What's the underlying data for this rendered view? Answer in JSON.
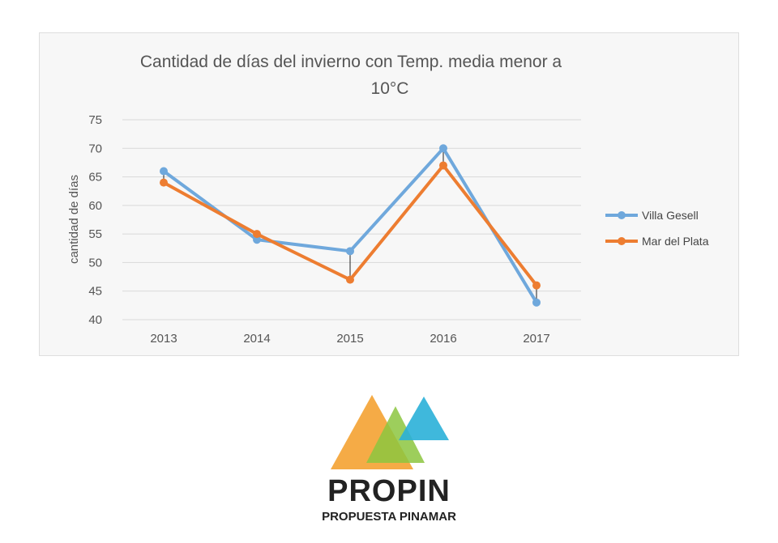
{
  "chart_data": {
    "type": "line",
    "title_line1": "Cantidad de días del invierno con Temp. media   menor a",
    "title_line2": "10°C",
    "ylabel": "cantidad de días",
    "xlabel": "",
    "categories": [
      "2013",
      "2014",
      "2015",
      "2016",
      "2017"
    ],
    "ylim": [
      40,
      75
    ],
    "yticks": [
      40,
      45,
      50,
      55,
      60,
      65,
      70,
      75
    ],
    "grid": true,
    "legend_position": "right",
    "series": [
      {
        "name": "Villa Gesell",
        "color": "#6fa8dc",
        "values": [
          66,
          54,
          52,
          70,
          43
        ]
      },
      {
        "name": "Mar del Plata",
        "color": "#ed7d31",
        "values": [
          64,
          55,
          47,
          67,
          46
        ]
      }
    ]
  },
  "branding": {
    "name": "PROPIN",
    "tagline": "PROPUESTA PINAMAR",
    "colors": {
      "orange": "#f4a63c",
      "green": "#8cc63f",
      "blue": "#2ab0d8",
      "dark": "#222222"
    }
  }
}
